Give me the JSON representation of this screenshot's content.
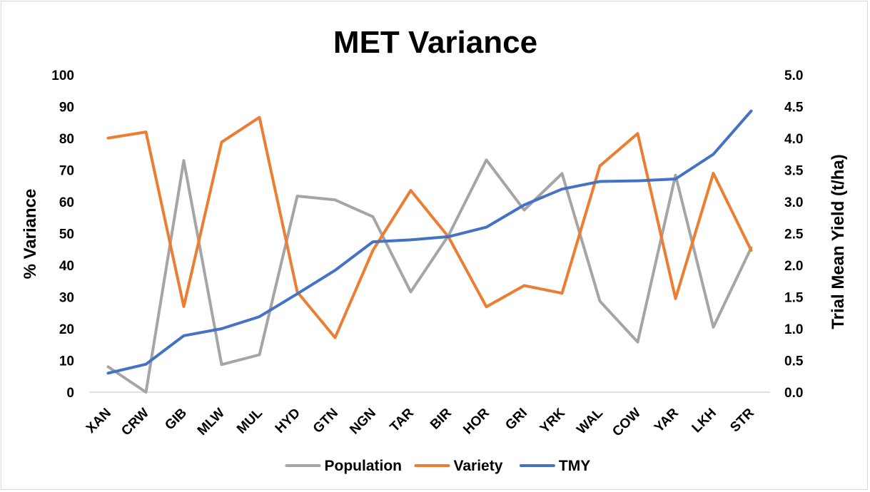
{
  "chart_data": {
    "type": "line",
    "title": "MET Variance",
    "ylabel": "% Variance",
    "y2label": "Trial Mean Yield (t/ha)",
    "categories": [
      "XAN",
      "CRW",
      "GIB",
      "MLW",
      "MUL",
      "HYD",
      "GTN",
      "NGN",
      "TAR",
      "BIR",
      "HOR",
      "GRI",
      "YRK",
      "WAL",
      "COW",
      "YAR",
      "LKH",
      "STR"
    ],
    "ylim": [
      0,
      100
    ],
    "y_ticks": [
      "0",
      "10",
      "20",
      "30",
      "40",
      "50",
      "60",
      "70",
      "80",
      "90",
      "100"
    ],
    "y2lim": [
      0,
      5
    ],
    "y2_ticks": [
      "0.0",
      "0.5",
      "1.0",
      "1.5",
      "2.0",
      "2.5",
      "3.0",
      "3.5",
      "4.0",
      "4.5",
      "5.0"
    ],
    "grid": false,
    "legend_position": "bottom",
    "series": [
      {
        "name": "Population",
        "axis": "left",
        "color": "#a5a5a5",
        "values": [
          8,
          0,
          73,
          8.7,
          11.8,
          61.8,
          60.6,
          55.3,
          31.6,
          49.4,
          73.2,
          57.4,
          68.9,
          28.7,
          15.8,
          68.4,
          20.5,
          45.5
        ]
      },
      {
        "name": "Variety",
        "axis": "left",
        "color": "#ed7d31",
        "values": [
          80.1,
          82,
          27,
          78.8,
          86.6,
          31.6,
          17.2,
          44.7,
          63.6,
          48.9,
          26.9,
          33.6,
          31.2,
          71.3,
          81.5,
          29.5,
          69,
          44.7
        ]
      },
      {
        "name": "TMY",
        "axis": "right",
        "color": "#4472c4",
        "values": [
          0.3,
          0.44,
          0.89,
          1.0,
          1.19,
          1.55,
          1.92,
          2.37,
          2.4,
          2.45,
          2.6,
          2.95,
          3.2,
          3.32,
          3.33,
          3.36,
          3.75,
          4.43
        ]
      }
    ]
  }
}
